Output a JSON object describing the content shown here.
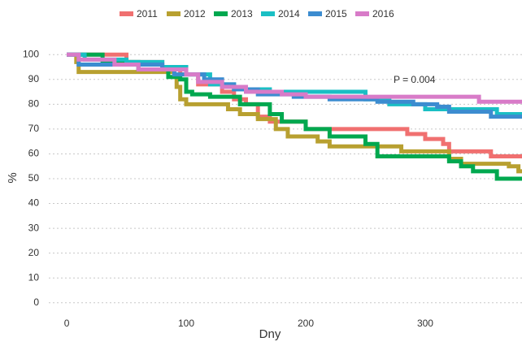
{
  "chart_data": {
    "type": "line",
    "step": "post",
    "xlabel": "Dny",
    "ylabel": "%",
    "annotations": [
      {
        "text": "P =  0.004",
        "x": 291,
        "y": 89.6
      }
    ],
    "legend": "top",
    "grid": true,
    "xlim": [
      -15,
      381
    ],
    "xticks": [
      0,
      100,
      200,
      300
    ],
    "ylim": [
      -4,
      104
    ],
    "yticks": [
      0,
      10,
      20,
      30,
      40,
      50,
      60,
      70,
      80,
      90,
      100
    ],
    "series": [
      {
        "name": "2011",
        "color": "#f07070",
        "x": [
          0,
          50,
          80,
          95,
          110,
          130,
          140,
          150,
          160,
          170,
          200,
          285,
          300,
          315,
          320,
          355,
          381
        ],
        "values": [
          100,
          97,
          95,
          92,
          88,
          85,
          82,
          80,
          75,
          73,
          70,
          68,
          66,
          64,
          61,
          59,
          59
        ]
      },
      {
        "name": "2012",
        "color": "#b8a030",
        "x": [
          0,
          8,
          10,
          90,
          92,
          95,
          100,
          135,
          145,
          160,
          175,
          185,
          210,
          220,
          280,
          320,
          330,
          370,
          378,
          381
        ],
        "values": [
          100,
          97,
          93,
          91,
          87,
          82,
          80,
          78,
          76,
          74,
          70,
          67,
          65,
          63,
          61,
          58,
          56,
          55,
          53,
          53
        ]
      },
      {
        "name": "2013",
        "color": "#00a84f",
        "x": [
          0,
          30,
          60,
          85,
          95,
          100,
          105,
          120,
          145,
          170,
          180,
          200,
          220,
          250,
          260,
          320,
          330,
          340,
          360,
          381
        ],
        "values": [
          100,
          97,
          94,
          91,
          90,
          85,
          84,
          83,
          80,
          76,
          73,
          70,
          67,
          64,
          59,
          57,
          55,
          53,
          50,
          50
        ]
      },
      {
        "name": "2014",
        "color": "#1abfc4",
        "x": [
          0,
          15,
          50,
          80,
          100,
          120,
          140,
          170,
          250,
          270,
          300,
          360,
          381
        ],
        "values": [
          100,
          98,
          97,
          95,
          92,
          88,
          86,
          85,
          82,
          80,
          78,
          76,
          76
        ]
      },
      {
        "name": "2015",
        "color": "#3c8cd0",
        "x": [
          0,
          10,
          80,
          90,
          115,
          130,
          140,
          160,
          190,
          220,
          260,
          290,
          310,
          320,
          355,
          381
        ],
        "values": [
          100,
          96,
          94,
          92,
          90,
          88,
          86,
          84,
          83,
          82,
          81,
          80,
          79,
          77,
          75,
          75
        ]
      },
      {
        "name": "2016",
        "color": "#d87bc8",
        "x": [
          0,
          10,
          40,
          60,
          100,
          110,
          130,
          150,
          180,
          200,
          345,
          381
        ],
        "values": [
          100,
          98,
          96,
          94,
          92,
          89,
          87,
          85,
          84,
          83,
          81,
          81
        ]
      }
    ]
  }
}
